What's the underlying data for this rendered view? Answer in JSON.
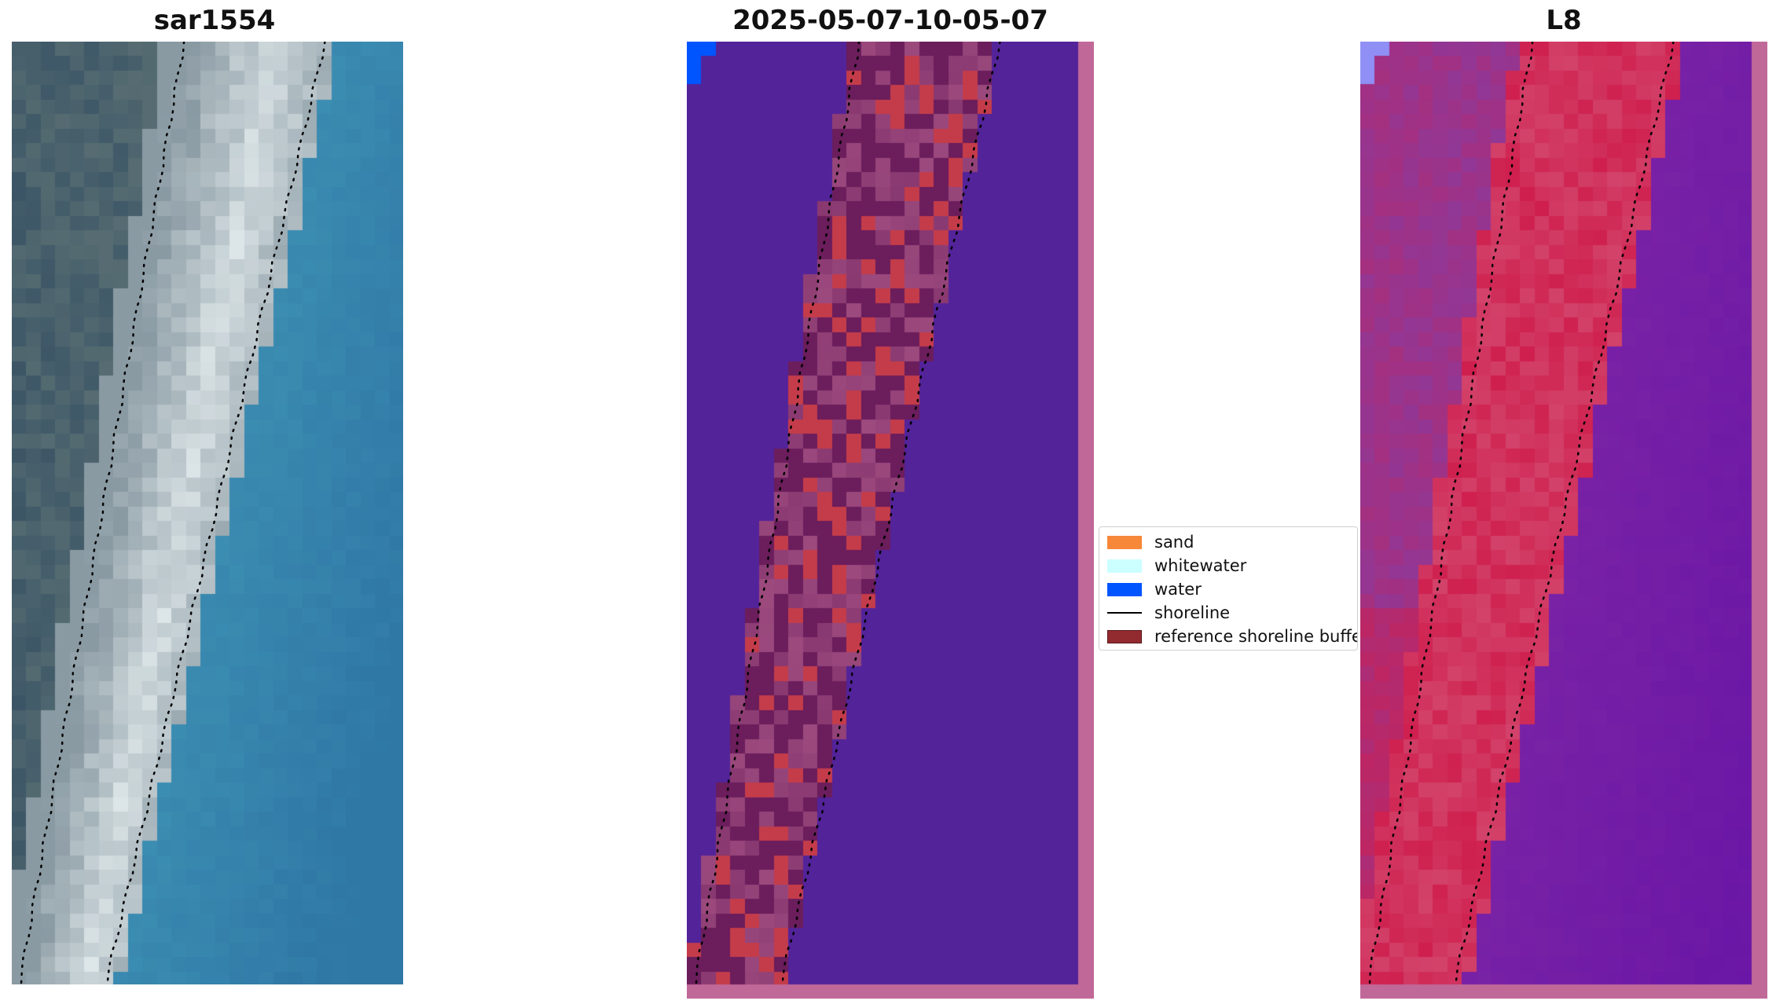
{
  "panels": [
    {
      "title": "sar1554"
    },
    {
      "title": "2025-05-07-10-05-07"
    },
    {
      "title": "L8"
    }
  ],
  "legend": {
    "items": [
      {
        "label": "sand",
        "color": "#f7883a"
      },
      {
        "label": "whitewater",
        "color": "#ccffff"
      },
      {
        "label": "water",
        "color": "#0055ff"
      },
      {
        "label": "shoreline",
        "color": "#000000"
      },
      {
        "label": "reference shoreline buffer",
        "color": "#922b30"
      }
    ]
  },
  "colors": {
    "classified_background": "#53239a",
    "classified_border": "#c06898",
    "buffer_dark": "#6b1d5c",
    "buffer_red": "#c43c4a",
    "l8_sea": "#7a23a6",
    "l8_land": "#8a3a9e",
    "l8_shore": "#cf1f4e"
  }
}
